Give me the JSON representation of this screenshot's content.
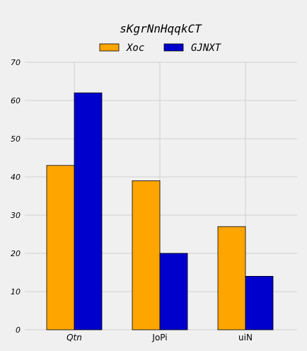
{
  "chart_data": {
    "type": "bar",
    "title": "sKgrNnHqqkCT",
    "xlabel": "",
    "ylabel": "",
    "categories": [
      "Qtn",
      "JoPi",
      "uiN"
    ],
    "category_italic": [
      true,
      false,
      false
    ],
    "series": [
      {
        "name": "Xoc",
        "color": "#ffa500",
        "values": [
          43,
          39,
          27
        ]
      },
      {
        "name": "GJNXT",
        "color": "#0000cd",
        "values": [
          62,
          20,
          14
        ]
      }
    ],
    "ylim": [
      0,
      70
    ],
    "yticks": [
      0,
      10,
      20,
      30,
      40,
      50,
      60,
      70
    ],
    "grid": true,
    "legend_position": "top-center"
  }
}
